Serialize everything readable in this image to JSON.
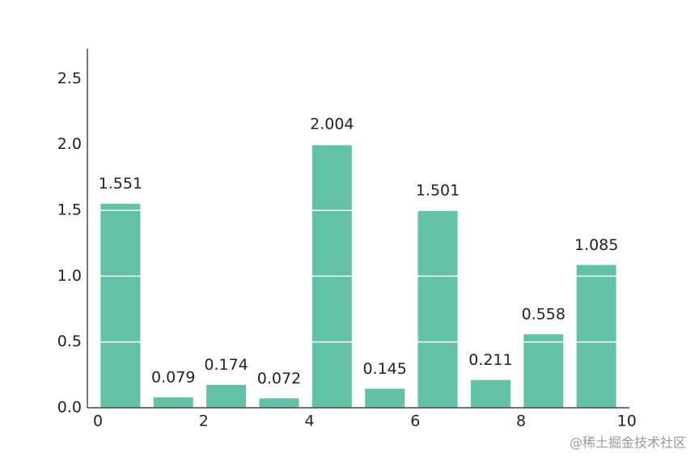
{
  "chart_data": {
    "type": "bar",
    "x": [
      0,
      1,
      2,
      3,
      4,
      5,
      6,
      7,
      8,
      9
    ],
    "values": [
      1.551,
      0.079,
      0.174,
      0.072,
      2.004,
      0.145,
      1.501,
      0.211,
      0.558,
      1.085
    ],
    "color": "#62c2a8",
    "xlim": [
      -0.2,
      10.05
    ],
    "xticks": [
      0,
      2,
      4,
      6,
      8,
      10
    ],
    "ylim": [
      0,
      2.73
    ],
    "yticks": [
      {
        "value": 0,
        "label": "0.0"
      },
      0.5,
      {
        "value": 1,
        "label": "1.0"
      },
      1.5,
      {
        "value": 2,
        "label": "2.0"
      },
      2.5
    ],
    "grid": true,
    "grid_color": "#ffffff",
    "watermark": "@稀土掘金技术社区"
  }
}
